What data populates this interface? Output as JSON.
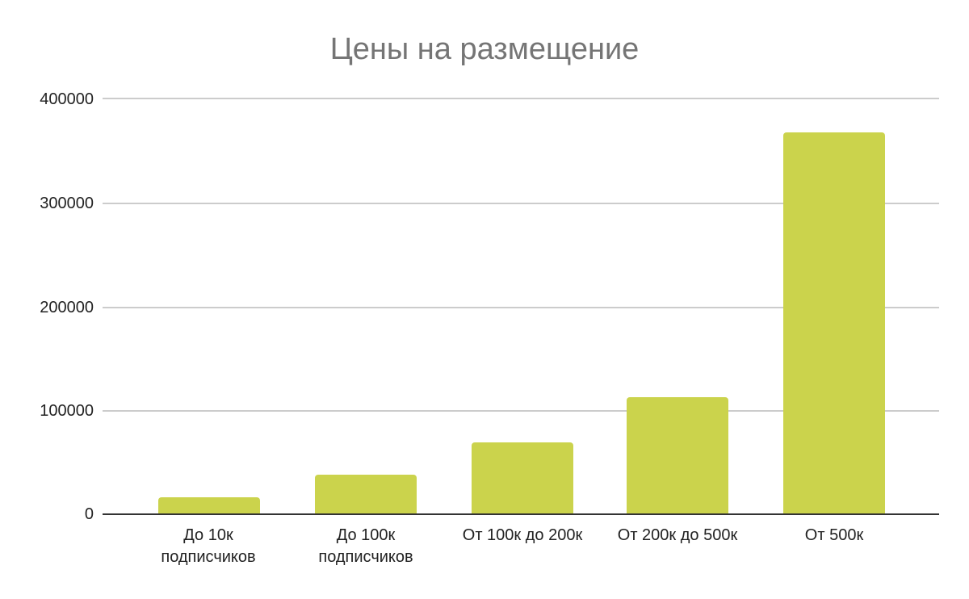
{
  "chart_data": {
    "type": "bar",
    "title": "Цены на размещение",
    "xlabel": "",
    "ylabel": "",
    "categories": [
      "До 10к подписчиков",
      "До 100к подписчиков",
      "От 100к до 200к",
      "От 200к до 500к",
      "От 500к"
    ],
    "category_lines": [
      [
        "До 10к",
        "подписчиков"
      ],
      [
        "До 100к",
        "подписчиков"
      ],
      [
        "От 100к до 200к"
      ],
      [
        "От 200к до 500к"
      ],
      [
        "От 500к"
      ]
    ],
    "values": [
      16000,
      38000,
      69000,
      113000,
      367000
    ],
    "ylim": [
      0,
      400000
    ],
    "yticks": [
      "0",
      "100000",
      "200000",
      "300000",
      "400000"
    ],
    "grid": true,
    "legend": null,
    "bar_color": "#cbd34c",
    "title_color": "#757575",
    "grid_color": "#cccccc",
    "axis_color": "#333333"
  }
}
